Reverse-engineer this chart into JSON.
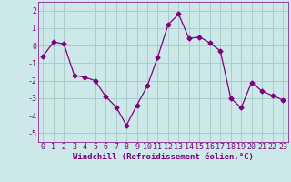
{
  "x": [
    0,
    1,
    2,
    3,
    4,
    5,
    6,
    7,
    8,
    9,
    10,
    11,
    12,
    13,
    14,
    15,
    16,
    17,
    18,
    19,
    20,
    21,
    22,
    23
  ],
  "y": [
    -0.6,
    0.2,
    0.1,
    -1.7,
    -1.8,
    -2.0,
    -2.9,
    -3.5,
    -4.55,
    -3.4,
    -2.3,
    -0.65,
    1.2,
    1.8,
    0.4,
    0.5,
    0.15,
    -0.3,
    -3.0,
    -3.55,
    -2.1,
    -2.6,
    -2.85,
    -3.1
  ],
  "line_color": "#800080",
  "marker": "D",
  "marker_size": 2.5,
  "bg_color": "#cce8e8",
  "grid_color": "#aacccc",
  "xlabel": "Windchill (Refroidissement éolien,°C)",
  "xlim": [
    -0.5,
    23.5
  ],
  "ylim": [
    -5.5,
    2.5
  ],
  "yticks": [
    -5,
    -4,
    -3,
    -2,
    -1,
    0,
    1,
    2
  ],
  "xticks": [
    0,
    1,
    2,
    3,
    4,
    5,
    6,
    7,
    8,
    9,
    10,
    11,
    12,
    13,
    14,
    15,
    16,
    17,
    18,
    19,
    20,
    21,
    22,
    23
  ],
  "xlabel_fontsize": 6.5,
  "tick_fontsize": 6.0
}
